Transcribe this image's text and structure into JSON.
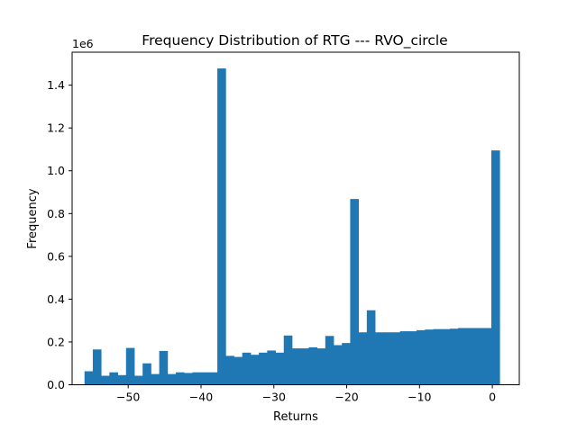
{
  "chart_data": {
    "type": "bar",
    "title": "Frequency Distribution of RTG --- RVO_circle",
    "xlabel": "Returns",
    "ylabel": "Frequency",
    "y_multiplier_label": "1e6",
    "xlim": [
      -57.7,
      3.7
    ],
    "ylim": [
      0,
      1.554
    ],
    "xticks": [
      -50,
      -40,
      -30,
      -20,
      -10,
      0
    ],
    "xtick_labels": [
      "−50",
      "−40",
      "−30",
      "−20",
      "−10",
      "0"
    ],
    "yticks": [
      0.0,
      0.2,
      0.4,
      0.6,
      0.8,
      1.0,
      1.2,
      1.4
    ],
    "ytick_labels": [
      "0.0",
      "0.2",
      "0.4",
      "0.6",
      "0.8",
      "1.0",
      "1.2",
      "1.4"
    ],
    "bar_color": "#1f77b4",
    "grid": false,
    "bin_range": [
      -56.0,
      1.0
    ],
    "values": [
      0.063,
      0.165,
      0.042,
      0.058,
      0.045,
      0.172,
      0.042,
      0.1,
      0.05,
      0.158,
      0.05,
      0.058,
      0.055,
      0.058,
      0.058,
      0.058,
      1.478,
      0.135,
      0.13,
      0.15,
      0.14,
      0.15,
      0.16,
      0.15,
      0.23,
      0.17,
      0.17,
      0.175,
      0.17,
      0.228,
      0.185,
      0.195,
      0.868,
      0.245,
      0.348,
      0.245,
      0.245,
      0.245,
      0.25,
      0.25,
      0.255,
      0.258,
      0.26,
      0.26,
      0.262,
      0.265,
      0.265,
      0.265,
      0.265,
      1.095
    ]
  }
}
